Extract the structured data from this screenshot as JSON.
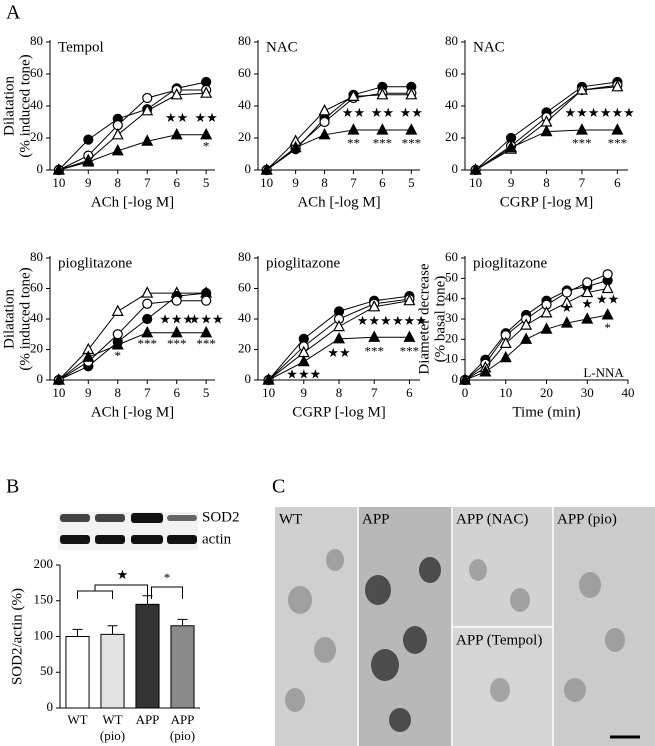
{
  "figure": {
    "panels": [
      "A",
      "B",
      "C"
    ],
    "blot": [
      "SOD2",
      "actin"
    ],
    "micrographs": [
      "WT",
      "APP",
      "APP (NAC)",
      "APP (Tempol)",
      "APP (pio)"
    ]
  },
  "chart_data": [
    {
      "type": "line",
      "title": "Tempol",
      "ylabel": [
        "Dilatation",
        "(% induced tone)"
      ],
      "xlabel": "ACh [-log M]",
      "x": [
        10,
        9,
        8,
        7,
        6,
        5
      ],
      "xlim": [
        10.3,
        4.7
      ],
      "xticks": [
        10,
        9,
        8,
        7,
        6,
        5
      ],
      "ylim": [
        0,
        80
      ],
      "yticks": [
        0,
        20,
        40,
        60,
        80
      ],
      "color": "#000000",
      "series": [
        {
          "marker": "filled-circle",
          "values": [
            0,
            19,
            32,
            38,
            51,
            55
          ]
        },
        {
          "marker": "open-circle",
          "values": [
            0,
            9,
            28,
            45,
            50,
            50
          ]
        },
        {
          "marker": "open-triangle",
          "values": [
            0,
            6,
            22,
            37,
            47,
            48
          ]
        },
        {
          "marker": "filled-triangle",
          "values": [
            0,
            5,
            12,
            18,
            22,
            22
          ]
        }
      ],
      "annotations": [
        {
          "text": "★★",
          "x": 6,
          "y": 32
        },
        {
          "text": "★★",
          "x": 5,
          "y": 32
        },
        {
          "text": "*",
          "x": 5,
          "y": 14
        }
      ]
    },
    {
      "type": "line",
      "title": "NAC",
      "xlabel": "ACh [-log M]",
      "x": [
        10,
        9,
        8,
        7,
        6,
        5
      ],
      "xlim": [
        10.3,
        4.7
      ],
      "xticks": [
        10,
        9,
        8,
        7,
        6,
        5
      ],
      "ylim": [
        0,
        80
      ],
      "yticks": [
        0,
        20,
        40,
        60,
        80
      ],
      "color": "#000000",
      "series": [
        {
          "marker": "filled-circle",
          "values": [
            0,
            13,
            32,
            47,
            52,
            52
          ]
        },
        {
          "marker": "open-circle",
          "values": [
            0,
            14,
            30,
            45,
            48,
            48
          ]
        },
        {
          "marker": "open-triangle",
          "values": [
            0,
            18,
            37,
            46,
            47,
            47
          ]
        },
        {
          "marker": "filled-triangle",
          "values": [
            0,
            14,
            22,
            25,
            25,
            25
          ]
        }
      ],
      "annotations": [
        {
          "text": "★★",
          "x": 7,
          "y": 35
        },
        {
          "text": "★★",
          "x": 6,
          "y": 35
        },
        {
          "text": "★★",
          "x": 5,
          "y": 35
        },
        {
          "text": "**",
          "x": 7,
          "y": 16
        },
        {
          "text": "***",
          "x": 6,
          "y": 16
        },
        {
          "text": "***",
          "x": 5,
          "y": 16
        }
      ]
    },
    {
      "type": "line",
      "title": "NAC",
      "xlabel": "CGRP [-log M]",
      "x": [
        10,
        9,
        8,
        7,
        6
      ],
      "xlim": [
        10.3,
        5.7
      ],
      "xticks": [
        10,
        9,
        8,
        7,
        6
      ],
      "ylim": [
        0,
        80
      ],
      "yticks": [
        0,
        20,
        40,
        60,
        80
      ],
      "color": "#000000",
      "series": [
        {
          "marker": "filled-circle",
          "values": [
            0,
            20,
            36,
            52,
            55
          ]
        },
        {
          "marker": "open-circle",
          "values": [
            0,
            15,
            33,
            50,
            53
          ]
        },
        {
          "marker": "open-triangle",
          "values": [
            0,
            13,
            30,
            50,
            52
          ]
        },
        {
          "marker": "filled-triangle",
          "values": [
            0,
            14,
            24,
            25,
            25
          ]
        }
      ],
      "annotations": [
        {
          "text": "★★★",
          "x": 7,
          "y": 35
        },
        {
          "text": "★★★",
          "x": 6,
          "y": 35
        },
        {
          "text": "***",
          "x": 7,
          "y": 16
        },
        {
          "text": "***",
          "x": 6,
          "y": 16
        }
      ]
    },
    {
      "type": "line",
      "title": "pioglitazone",
      "ylabel": [
        "Dilatation",
        "(% induced tone)"
      ],
      "xlabel": "ACh [-log M]",
      "x": [
        10,
        9,
        8,
        7,
        6,
        5
      ],
      "xlim": [
        10.3,
        4.7
      ],
      "xticks": [
        10,
        9,
        8,
        7,
        6,
        5
      ],
      "ylim": [
        0,
        80
      ],
      "yticks": [
        0,
        20,
        40,
        60,
        80
      ],
      "color": "#000000",
      "series": [
        {
          "marker": "open-triangle",
          "values": [
            0,
            20,
            45,
            57,
            57,
            57
          ]
        },
        {
          "marker": "filled-circle",
          "values": [
            0,
            9,
            25,
            40,
            55,
            57
          ]
        },
        {
          "marker": "open-circle",
          "values": [
            0,
            12,
            30,
            50,
            52,
            52
          ]
        },
        {
          "marker": "filled-triangle",
          "values": [
            0,
            15,
            23,
            31,
            31,
            31
          ]
        }
      ],
      "annotations": [
        {
          "text": "*",
          "x": 8,
          "y": 15
        },
        {
          "text": "★★★",
          "x": 6,
          "y": 39
        },
        {
          "text": "★★★",
          "x": 5,
          "y": 39
        },
        {
          "text": "***",
          "x": 7,
          "y": 23
        },
        {
          "text": "***",
          "x": 6,
          "y": 23
        },
        {
          "text": "***",
          "x": 5,
          "y": 23
        }
      ]
    },
    {
      "type": "line",
      "title": "pioglitazone",
      "xlabel": "CGRP [-log M]",
      "x": [
        10,
        9,
        8,
        7,
        6
      ],
      "xlim": [
        10.3,
        5.7
      ],
      "xticks": [
        10,
        9,
        8,
        7,
        6
      ],
      "ylim": [
        0,
        80
      ],
      "yticks": [
        0,
        20,
        40,
        60,
        80
      ],
      "color": "#000000",
      "series": [
        {
          "marker": "filled-circle",
          "values": [
            0,
            27,
            45,
            52,
            55
          ]
        },
        {
          "marker": "open-circle",
          "values": [
            0,
            22,
            40,
            50,
            53
          ]
        },
        {
          "marker": "open-triangle",
          "values": [
            0,
            18,
            35,
            48,
            52
          ]
        },
        {
          "marker": "filled-triangle",
          "values": [
            0,
            12,
            27,
            28,
            28
          ]
        }
      ],
      "annotations": [
        {
          "text": "★★★",
          "x": 9,
          "y": 3
        },
        {
          "text": "★★",
          "x": 8,
          "y": 17
        },
        {
          "text": "★★★",
          "x": 7,
          "y": 38
        },
        {
          "text": "★★★",
          "x": 6,
          "y": 38
        },
        {
          "text": "***",
          "x": 7,
          "y": 18
        },
        {
          "text": "***",
          "x": 6,
          "y": 18
        }
      ]
    },
    {
      "type": "line",
      "title": "pioglitazone",
      "ylabel": [
        "Diameter decrease",
        "(% basal tone)"
      ],
      "xlabel": "Time (min)",
      "x": [
        0,
        5,
        10,
        15,
        20,
        25,
        30,
        35
      ],
      "xlim": [
        0,
        40
      ],
      "xticks": [
        0,
        10,
        20,
        30,
        40
      ],
      "ylim": [
        0,
        60
      ],
      "yticks": [
        0,
        10,
        20,
        30,
        40,
        50,
        60
      ],
      "color": "#000000",
      "series": [
        {
          "marker": "filled-circle",
          "values": [
            0,
            10,
            23,
            32,
            39,
            44,
            46,
            49
          ]
        },
        {
          "marker": "open-circle",
          "values": [
            0,
            8,
            22,
            30,
            37,
            43,
            48,
            52
          ]
        },
        {
          "marker": "open-triangle",
          "values": [
            0,
            6,
            18,
            27,
            33,
            38,
            43,
            45
          ]
        },
        {
          "marker": "filled-triangle",
          "values": [
            0,
            4,
            11,
            20,
            25,
            28,
            30,
            32
          ]
        }
      ],
      "annotations": [
        {
          "text": "★",
          "x": 25,
          "y": 35
        },
        {
          "text": "★",
          "x": 30,
          "y": 37
        },
        {
          "text": "★★",
          "x": 35,
          "y": 39
        },
        {
          "text": "*",
          "x": 35,
          "y": 25
        },
        {
          "text": "L-NNA",
          "x": 34,
          "y": 3
        }
      ]
    },
    {
      "type": "bar",
      "ylabel": "SOD2/actin (%)",
      "categories": [
        "WT",
        "WT",
        "APP",
        "APP"
      ],
      "subcategories": [
        null,
        "(pio)",
        null,
        "(pio)"
      ],
      "values": [
        100,
        103,
        145,
        115
      ],
      "errors": [
        10,
        12,
        12,
        9
      ],
      "colors": [
        "#ffffff",
        "#e3e3e3",
        "#333333",
        "#8a8a8a"
      ],
      "ylim": [
        0,
        200
      ],
      "yticks": [
        0,
        50,
        100,
        150,
        200
      ],
      "significance": [
        "★",
        "*"
      ]
    }
  ]
}
